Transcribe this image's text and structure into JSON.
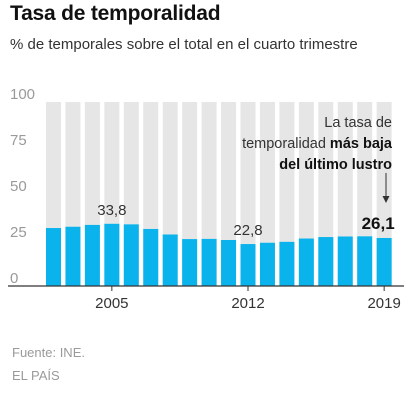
{
  "header": {
    "title": "Tasa de temporalidad",
    "subtitle": "% de temporales sobre el total en el cuarto trimestre"
  },
  "footer": {
    "source": "Fuente: INE.",
    "credit": "EL PAÍS"
  },
  "annotation": {
    "line1": "La tasa de",
    "line2_normal": "temporalidad ",
    "line2_bold": "más baja",
    "line3_bold": "del último lustro"
  },
  "colors": {
    "bar": "#0ab3ec",
    "background_column": "#e6e6e6",
    "axis": "#333333",
    "tick_label": "#9a9a9a",
    "annotation": "#333333"
  },
  "chart_data": {
    "type": "bar",
    "categories": [
      "2002",
      "2003",
      "2004",
      "2005",
      "2006",
      "2007",
      "2008",
      "2009",
      "2010",
      "2011",
      "2012",
      "2013",
      "2014",
      "2015",
      "2016",
      "2017",
      "2018",
      "2019"
    ],
    "values": [
      31.5,
      32.2,
      33.2,
      33.8,
      33.5,
      31.0,
      28.0,
      25.5,
      25.6,
      25.0,
      22.8,
      23.5,
      24.0,
      25.8,
      26.6,
      26.9,
      27.0,
      26.1
    ],
    "ylim": [
      0,
      100
    ],
    "yticks": [
      0,
      25,
      50,
      75,
      100
    ],
    "xtick_labels": [
      "2005",
      "2012",
      "2019"
    ],
    "data_labels": [
      {
        "category": "2005",
        "text": "33,8"
      },
      {
        "category": "2012",
        "text": "22,8"
      },
      {
        "category": "2019",
        "text": "26,1"
      }
    ],
    "grid": false,
    "legend": "none"
  }
}
